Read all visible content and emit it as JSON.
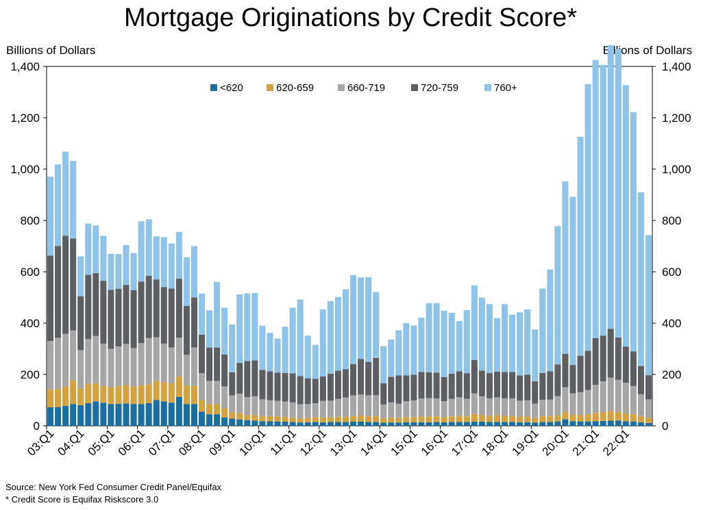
{
  "chart_data": {
    "type": "bar",
    "stacked": true,
    "title": "Mortgage Originations by Credit Score*",
    "ylabel": "Billions of Dollars",
    "ylabel_right": "Billions of Dollars",
    "ylim": [
      0,
      1400
    ],
    "yticks": [
      "0",
      "200",
      "400",
      "600",
      "800",
      "1,000",
      "1,200",
      "1,400"
    ],
    "xtick_labels": [
      "03:Q1",
      "04:Q1",
      "05:Q1",
      "06:Q1",
      "07:Q1",
      "08:Q1",
      "09:Q1",
      "10:Q1",
      "11:Q1",
      "12:Q1",
      "13:Q1",
      "14:Q1",
      "15:Q1",
      "16:Q1",
      "17:Q1",
      "18:Q1",
      "19:Q1",
      "20:Q1",
      "21:Q1",
      "22:Q1"
    ],
    "legend_position": "top-center",
    "categories": [
      "03:Q1",
      "03:Q2",
      "03:Q3",
      "03:Q4",
      "04:Q1",
      "04:Q2",
      "04:Q3",
      "04:Q4",
      "05:Q1",
      "05:Q2",
      "05:Q3",
      "05:Q4",
      "06:Q1",
      "06:Q2",
      "06:Q3",
      "06:Q4",
      "07:Q1",
      "07:Q2",
      "07:Q3",
      "07:Q4",
      "08:Q1",
      "08:Q2",
      "08:Q3",
      "08:Q4",
      "09:Q1",
      "09:Q2",
      "09:Q3",
      "09:Q4",
      "10:Q1",
      "10:Q2",
      "10:Q3",
      "10:Q4",
      "11:Q1",
      "11:Q2",
      "11:Q3",
      "11:Q4",
      "12:Q1",
      "12:Q2",
      "12:Q3",
      "12:Q4",
      "13:Q1",
      "13:Q2",
      "13:Q3",
      "13:Q4",
      "14:Q1",
      "14:Q2",
      "14:Q3",
      "14:Q4",
      "15:Q1",
      "15:Q2",
      "15:Q3",
      "15:Q4",
      "16:Q1",
      "16:Q2",
      "16:Q3",
      "16:Q4",
      "17:Q1",
      "17:Q2",
      "17:Q3",
      "17:Q4",
      "18:Q1",
      "18:Q2",
      "18:Q3",
      "18:Q4",
      "19:Q1",
      "19:Q2",
      "19:Q3",
      "19:Q4",
      "20:Q1",
      "20:Q2",
      "20:Q3",
      "20:Q4",
      "21:Q1",
      "21:Q2",
      "21:Q3",
      "21:Q4",
      "22:Q1",
      "22:Q2",
      "22:Q3",
      "22:Q4"
    ],
    "series": [
      {
        "name": "<620",
        "color": "#1a6fa0",
        "values": [
          72,
          73,
          78,
          85,
          80,
          88,
          95,
          90,
          85,
          86,
          87,
          85,
          85,
          88,
          100,
          95,
          90,
          113,
          85,
          85,
          55,
          45,
          45,
          33,
          28,
          25,
          22,
          20,
          18,
          18,
          17,
          16,
          15,
          13,
          14,
          15,
          14,
          15,
          15,
          15,
          16,
          16,
          15,
          15,
          12,
          13,
          13,
          14,
          14,
          14,
          14,
          15,
          14,
          15,
          15,
          15,
          16,
          16,
          15,
          15,
          15,
          15,
          14,
          14,
          13,
          15,
          15,
          17,
          25,
          18,
          17,
          17,
          18,
          19,
          20,
          20,
          18,
          17,
          14,
          11
        ]
      },
      {
        "name": "620-659",
        "color": "#d4a23e",
        "values": [
          70,
          70,
          75,
          92,
          65,
          75,
          70,
          65,
          65,
          68,
          72,
          68,
          72,
          74,
          75,
          75,
          75,
          80,
          72,
          70,
          45,
          40,
          40,
          35,
          25,
          25,
          20,
          22,
          20,
          20,
          20,
          18,
          16,
          16,
          16,
          18,
          18,
          18,
          20,
          20,
          22,
          24,
          22,
          22,
          16,
          18,
          18,
          20,
          20,
          22,
          22,
          22,
          20,
          22,
          24,
          22,
          30,
          26,
          24,
          26,
          24,
          24,
          22,
          22,
          18,
          22,
          22,
          24,
          30,
          26,
          26,
          28,
          32,
          34,
          38,
          34,
          30,
          28,
          24,
          20
        ]
      },
      {
        "name": "660-719",
        "color": "#a6a6a7",
        "values": [
          188,
          200,
          205,
          195,
          150,
          175,
          185,
          165,
          150,
          155,
          160,
          150,
          165,
          180,
          170,
          150,
          140,
          150,
          120,
          150,
          105,
          90,
          90,
          85,
          65,
          75,
          70,
          73,
          65,
          62,
          60,
          60,
          60,
          55,
          55,
          55,
          65,
          65,
          70,
          75,
          80,
          82,
          82,
          82,
          55,
          60,
          55,
          62,
          65,
          70,
          72,
          70,
          62,
          68,
          72,
          68,
          80,
          73,
          68,
          70,
          68,
          68,
          62,
          64,
          55,
          64,
          65,
          75,
          95,
          82,
          88,
          95,
          110,
          120,
          130,
          125,
          120,
          110,
          85,
          72
        ]
      },
      {
        "name": "720-759",
        "color": "#5c5f63",
        "values": [
          333,
          357,
          382,
          358,
          210,
          250,
          245,
          245,
          230,
          225,
          230,
          225,
          240,
          242,
          225,
          220,
          230,
          230,
          190,
          195,
          150,
          130,
          130,
          125,
          90,
          120,
          140,
          140,
          115,
          112,
          110,
          112,
          113,
          110,
          100,
          95,
          95,
          105,
          110,
          110,
          122,
          138,
          130,
          145,
          83,
          100,
          110,
          100,
          100,
          104,
          100,
          100,
          94,
          98,
          101,
          100,
          130,
          100,
          99,
          100,
          103,
          103,
          98,
          99,
          87,
          105,
          110,
          123,
          130,
          111,
          142,
          152,
          182,
          178,
          190,
          165,
          140,
          135,
          110,
          94
        ]
      },
      {
        "name": "760+",
        "color": "#8fc3e8",
        "values": [
          308,
          318,
          328,
          302,
          155,
          200,
          185,
          175,
          140,
          135,
          155,
          145,
          235,
          220,
          168,
          195,
          175,
          182,
          190,
          200,
          160,
          145,
          255,
          182,
          187,
          267,
          264,
          262,
          172,
          150,
          133,
          180,
          256,
          298,
          166,
          133,
          261,
          283,
          287,
          312,
          347,
          318,
          330,
          257,
          144,
          145,
          176,
          204,
          192,
          211,
          270,
          271,
          258,
          237,
          196,
          246,
          291,
          284,
          268,
          209,
          264,
          223,
          246,
          254,
          202,
          329,
          397,
          539,
          672,
          655,
          853,
          1039,
          1083,
          1055,
          1105,
          1124,
          1019,
          932,
          677,
          546
        ]
      }
    ]
  },
  "footer": {
    "source": "Source: New York Fed Consumer Credit Panel/Equifax",
    "note": "* Credit Score is Equifax Riskscore 3.0"
  }
}
